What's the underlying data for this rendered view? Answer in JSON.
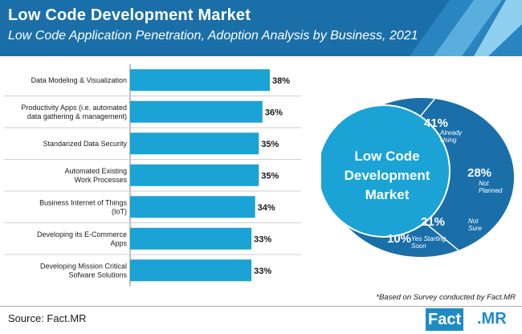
{
  "header": {
    "title": "Low Code Development Market",
    "subtitle": "Low Code Application Penetration, Adoption Analysis by Business, 2021"
  },
  "chart_data": [
    {
      "type": "bar",
      "orientation": "horizontal",
      "categories": [
        [
          "Data Modeling & Visualization"
        ],
        [
          "Productivity Apps (i.e. automated",
          "data gathering & management)"
        ],
        [
          "Standarized Data Security"
        ],
        [
          "Automated Existing",
          "Work Processes"
        ],
        [
          "Business Internet of Things",
          "(IoT)"
        ],
        [
          "Developing its E-Commerce",
          "Apps"
        ],
        [
          "Developing Mission Critical",
          "Sofware Solutions"
        ]
      ],
      "values": [
        38,
        36,
        35,
        35,
        34,
        33,
        33
      ],
      "value_labels": [
        "38%",
        "36%",
        "35%",
        "35%",
        "34%",
        "33%",
        "33%"
      ],
      "color": "#1aa3d4"
    },
    {
      "type": "pie",
      "center_label": [
        "Low Code",
        "Development",
        "Market"
      ],
      "slices": [
        {
          "pct": "41%",
          "label": [
            "Already",
            "Using"
          ],
          "value": 41,
          "color": "#1a6fa8"
        },
        {
          "pct": "28%",
          "label": [
            "Not",
            "Planned"
          ],
          "value": 28,
          "color": "#1a6fa8"
        },
        {
          "pct": "21%",
          "label": [
            "Not",
            "Sure"
          ],
          "value": 21,
          "color": "#1a6fa8"
        },
        {
          "pct": "10%",
          "label": [
            "Yes Starting",
            "Soon"
          ],
          "value": 10,
          "color": "#1a6fa8"
        }
      ],
      "center_color": "#1aa3d4"
    }
  ],
  "footnote": "*Based on Survey conducted by Fact.MR",
  "source": "Source: Fact.MR",
  "logo": {
    "part1": "Fact",
    "part2": ".MR"
  },
  "colors": {
    "header": "#1a6fa8",
    "bar": "#1aa3d4",
    "pie_dark": "#1a6fa8",
    "pie_center": "#1aa3d4"
  }
}
